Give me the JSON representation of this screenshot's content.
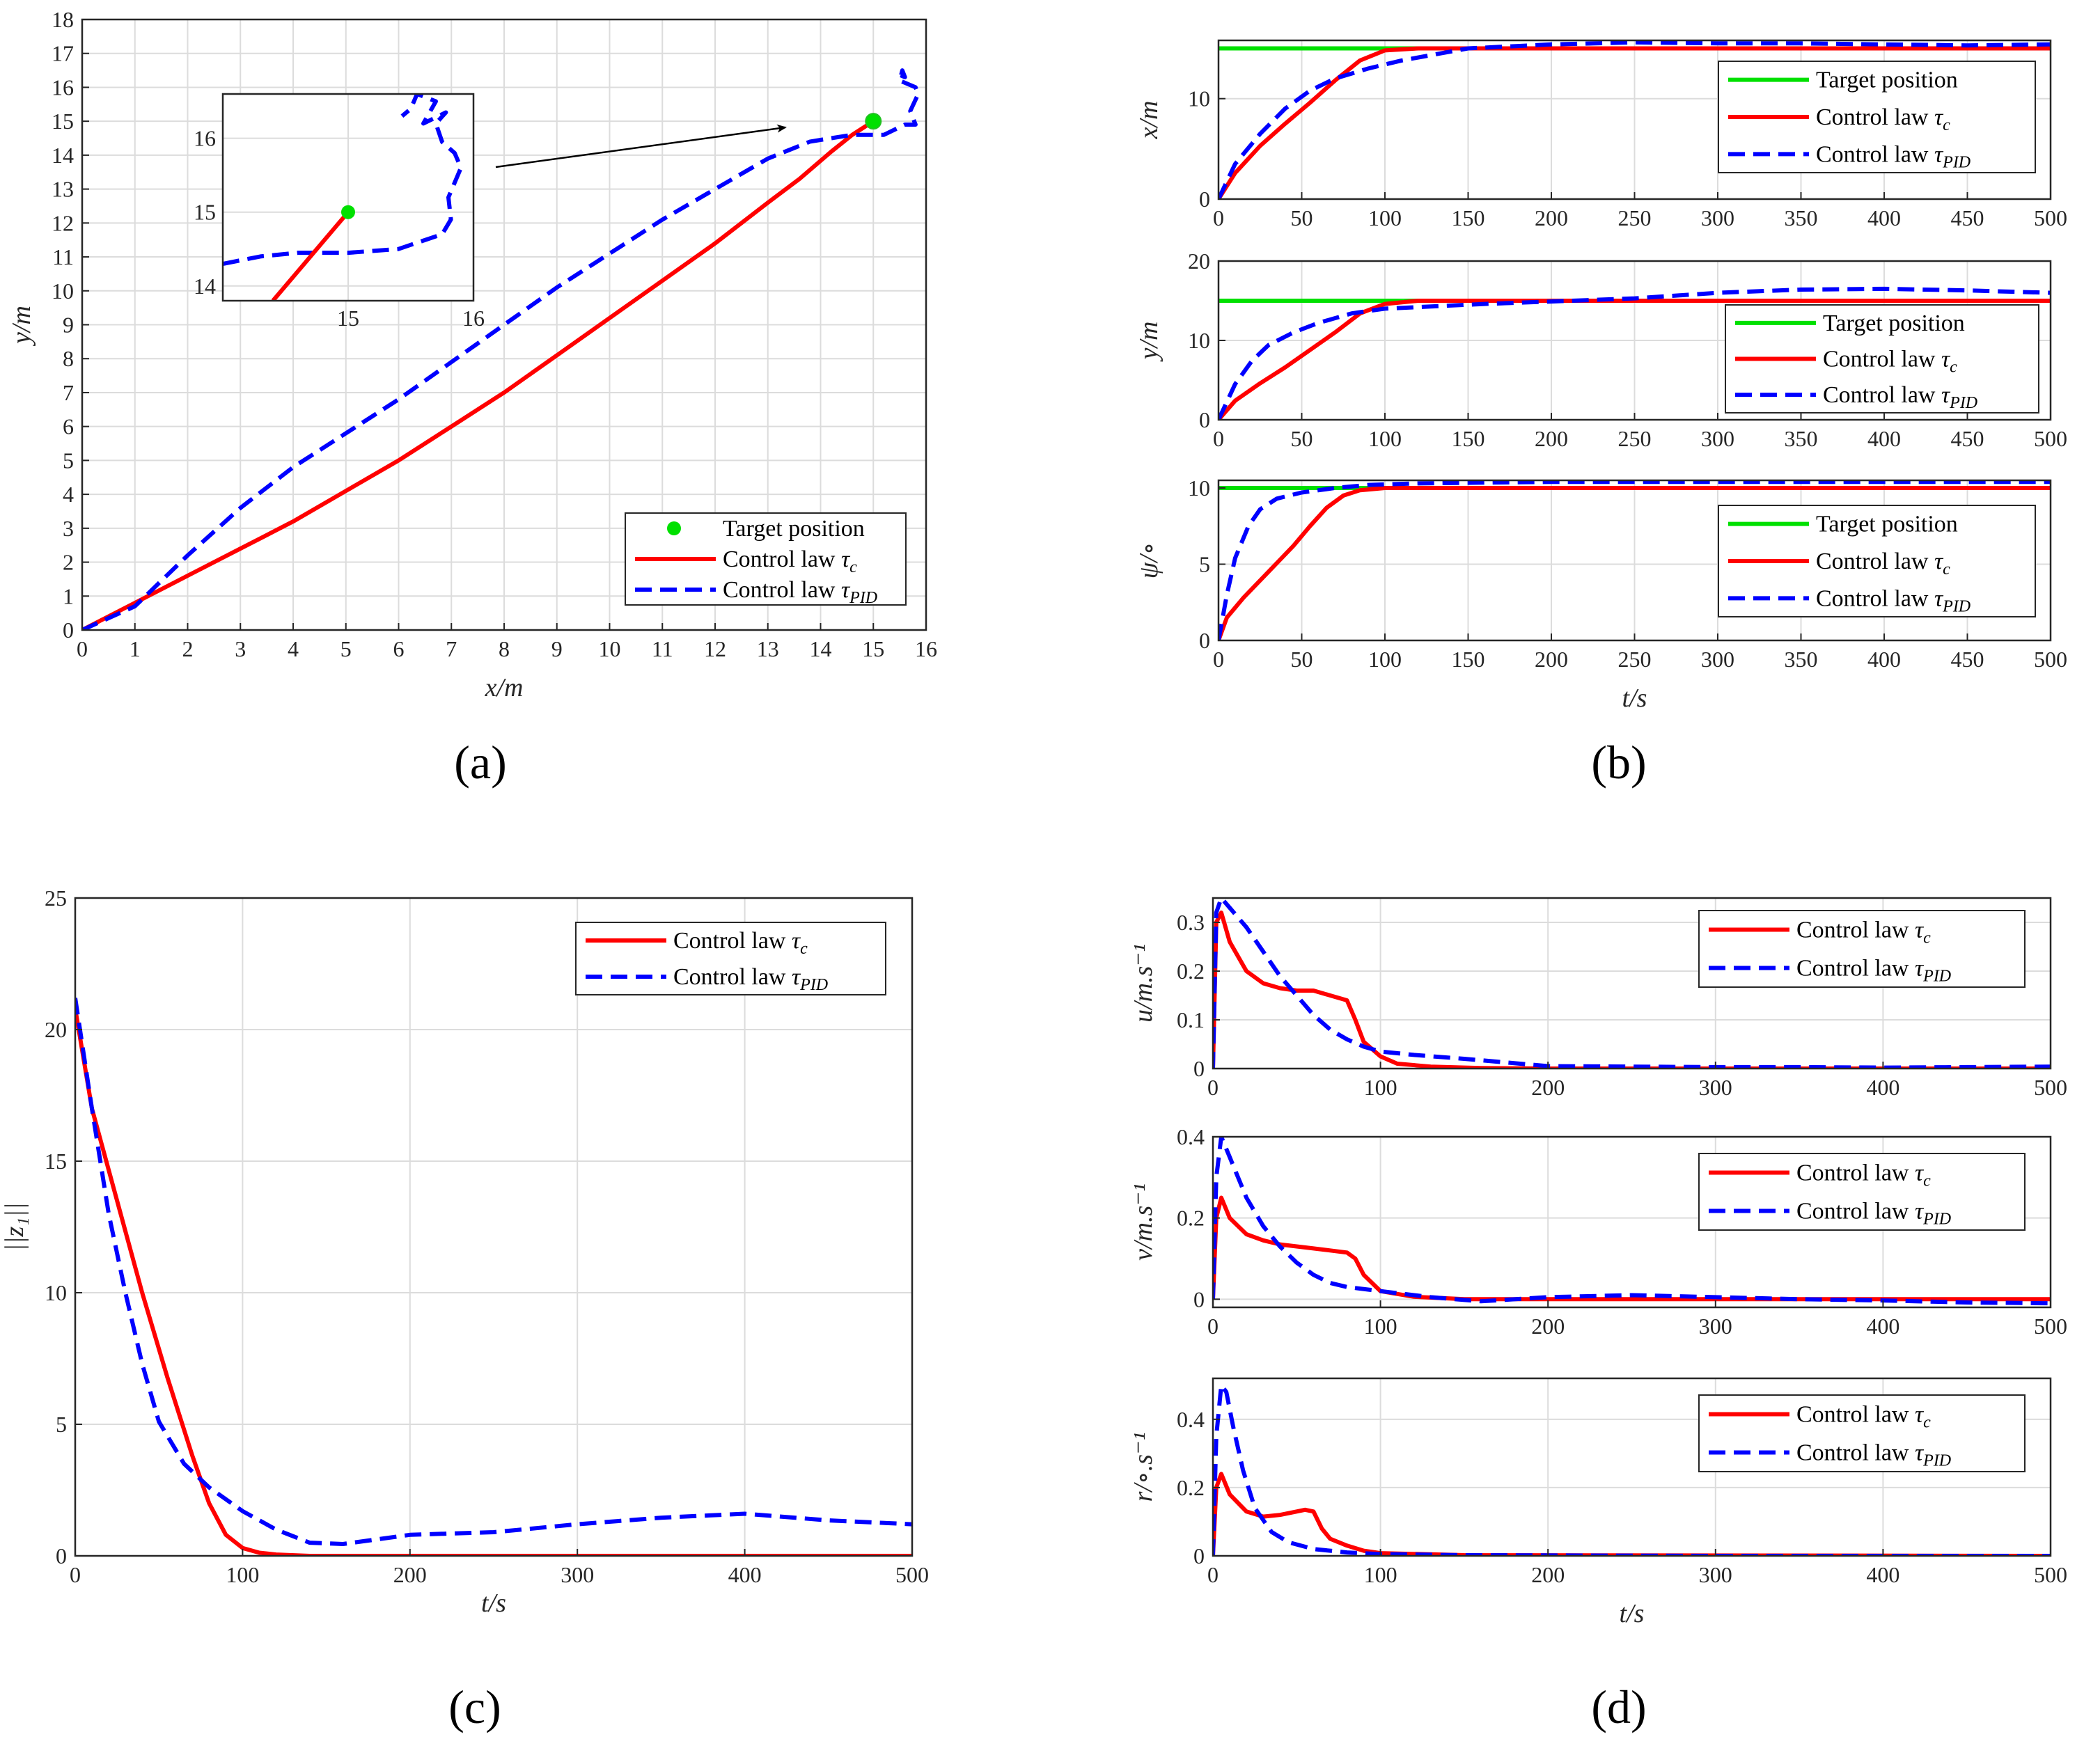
{
  "colors": {
    "target": "#00e000",
    "ctrl": "#ff0000",
    "pid": "#0000ff",
    "axis": "#262626",
    "grid": "#dcdcdc"
  },
  "chart_data": [
    {
      "id": "a",
      "type": "line",
      "panel_label": "(a)",
      "xlabel": "x/m",
      "ylabel": "y/m",
      "xlim": [
        0,
        16
      ],
      "ylim": [
        0,
        18
      ],
      "xticks": [
        0,
        1,
        2,
        3,
        4,
        5,
        6,
        7,
        8,
        9,
        10,
        11,
        12,
        13,
        14,
        15,
        16
      ],
      "yticks": [
        0,
        1,
        2,
        3,
        4,
        5,
        6,
        7,
        8,
        9,
        10,
        11,
        12,
        13,
        14,
        15,
        16,
        17,
        18
      ],
      "legend": [
        "Target position",
        "Control law τc",
        "Control law τPID"
      ],
      "legend_position": "bottom-right",
      "target": [
        15,
        15
      ],
      "series": [
        {
          "name": "Control law τc",
          "style": "ctrl",
          "x": [
            0,
            1,
            2,
            3,
            4,
            5,
            6,
            7,
            8,
            9,
            10,
            11,
            12,
            13,
            13.6,
            14.2,
            14.6,
            15
          ],
          "y": [
            0,
            0.8,
            1.6,
            2.4,
            3.2,
            4.1,
            5,
            6,
            7,
            8.1,
            9.2,
            10.3,
            11.4,
            12.6,
            13.3,
            14.1,
            14.6,
            15
          ]
        },
        {
          "name": "Control law τPID",
          "style": "pid",
          "x": [
            0,
            1,
            2,
            3,
            4,
            5,
            6,
            7,
            8,
            9,
            10,
            11,
            12,
            13,
            13.8,
            14.6,
            15.2,
            15.6,
            15.8,
            15.7,
            15.85,
            15.8,
            15.5,
            15.55,
            15.6,
            15.45
          ],
          "y": [
            0,
            0.7,
            2.2,
            3.6,
            4.8,
            5.8,
            6.8,
            7.9,
            9,
            10.1,
            11.1,
            12.1,
            13,
            13.9,
            14.4,
            14.6,
            14.6,
            14.9,
            14.9,
            15.3,
            15.8,
            16,
            16.2,
            16.5,
            16.3,
            16.4
          ]
        }
      ],
      "inset": {
        "xlim": [
          14,
          16
        ],
        "ylim": [
          13.8,
          16.6
        ],
        "xticks": [
          15,
          16
        ],
        "yticks": [
          14,
          15,
          16
        ],
        "ctrl": {
          "x": [
            14.4,
            14.6,
            14.8,
            15
          ],
          "y": [
            13.8,
            14.2,
            14.6,
            15
          ]
        },
        "pid": {
          "x": [
            14,
            14.3,
            14.6,
            15.0,
            15.4,
            15.75,
            15.82,
            15.8,
            15.85,
            15.9,
            15.85,
            15.75,
            15.7,
            15.78,
            15.6,
            15.7,
            15.55,
            15.5,
            15.43
          ],
          "y": [
            14.3,
            14.4,
            14.45,
            14.45,
            14.5,
            14.7,
            14.9,
            15.2,
            15.4,
            15.6,
            15.8,
            15.95,
            16.2,
            16.35,
            16.2,
            16.5,
            16.6,
            16.4,
            16.3
          ]
        }
      }
    },
    {
      "id": "b1",
      "type": "line",
      "panel_label": "(b)",
      "xlabel": "",
      "ylabel": "x/m",
      "xlim": [
        0,
        500
      ],
      "ylim": [
        0,
        15.8
      ],
      "xticks": [
        0,
        50,
        100,
        150,
        200,
        250,
        300,
        350,
        400,
        450,
        500
      ],
      "yticks": [
        0,
        10
      ],
      "legend": [
        "Target position",
        "Control law τc",
        "Control law τPID"
      ],
      "legend_position": "top-right",
      "series": [
        {
          "name": "Target position",
          "style": "target",
          "x": [
            0,
            500
          ],
          "y": [
            15,
            15
          ]
        },
        {
          "name": "Control law τc",
          "style": "ctrl",
          "x": [
            0,
            10,
            25,
            40,
            55,
            70,
            85,
            100,
            120,
            150,
            200,
            300,
            500
          ],
          "y": [
            0,
            2.6,
            5.3,
            7.5,
            9.6,
            11.8,
            13.8,
            14.8,
            15,
            15,
            15,
            15,
            15
          ]
        },
        {
          "name": "Control law τPID",
          "style": "pid",
          "x": [
            0,
            10,
            25,
            40,
            55,
            70,
            90,
            110,
            130,
            150,
            200,
            250,
            300,
            350,
            400,
            450,
            500
          ],
          "y": [
            0,
            3.5,
            6.5,
            9,
            10.8,
            12,
            13,
            13.8,
            14.4,
            15,
            15.4,
            15.6,
            15.5,
            15.5,
            15.4,
            15.3,
            15.4
          ]
        }
      ]
    },
    {
      "id": "b2",
      "type": "line",
      "xlabel": "",
      "ylabel": "y/m",
      "xlim": [
        0,
        500
      ],
      "ylim": [
        0,
        20
      ],
      "xticks": [
        0,
        50,
        100,
        150,
        200,
        250,
        300,
        350,
        400,
        450,
        500
      ],
      "yticks": [
        0,
        10,
        20
      ],
      "legend": [
        "Target position",
        "Control law τc",
        "Control law τPID"
      ],
      "legend_position": "right",
      "series": [
        {
          "name": "Target position",
          "style": "target",
          "x": [
            0,
            500
          ],
          "y": [
            15,
            15
          ]
        },
        {
          "name": "Control law τc",
          "style": "ctrl",
          "x": [
            0,
            10,
            25,
            40,
            55,
            70,
            85,
            100,
            120,
            150,
            300,
            500
          ],
          "y": [
            0,
            2.4,
            4.6,
            6.6,
            8.8,
            11,
            13.4,
            14.6,
            15,
            15,
            15,
            15
          ]
        },
        {
          "name": "Control law τPID",
          "style": "pid",
          "x": [
            0,
            10,
            20,
            30,
            45,
            60,
            80,
            100,
            130,
            160,
            200,
            250,
            300,
            350,
            400,
            450,
            500
          ],
          "y": [
            0,
            4.5,
            7.4,
            9.4,
            11,
            12.2,
            13.4,
            14,
            14.3,
            14.6,
            14.9,
            15.3,
            16,
            16.4,
            16.5,
            16.3,
            16
          ]
        }
      ]
    },
    {
      "id": "b3",
      "type": "line",
      "xlabel": "t/s",
      "ylabel": "ψ/∘",
      "xlim": [
        0,
        500
      ],
      "ylim": [
        0,
        10.5
      ],
      "xticks": [
        0,
        50,
        100,
        150,
        200,
        250,
        300,
        350,
        400,
        450,
        500
      ],
      "yticks": [
        0,
        5,
        10
      ],
      "legend": [
        "Target position",
        "Control law τc",
        "Control law τPID"
      ],
      "legend_position": "right",
      "series": [
        {
          "name": "Target position",
          "style": "target",
          "x": [
            0,
            500
          ],
          "y": [
            10,
            10
          ]
        },
        {
          "name": "Control law τc",
          "style": "ctrl",
          "x": [
            0,
            5,
            15,
            30,
            45,
            55,
            65,
            75,
            85,
            100,
            120,
            200,
            500
          ],
          "y": [
            0,
            1.5,
            2.8,
            4.5,
            6.2,
            7.5,
            8.7,
            9.5,
            9.85,
            10,
            10,
            10,
            10
          ]
        },
        {
          "name": "Control law τPID",
          "style": "pid",
          "x": [
            0,
            5,
            10,
            18,
            25,
            35,
            50,
            70,
            90,
            120,
            200,
            300,
            400,
            500
          ],
          "y": [
            0,
            3,
            5.4,
            7.5,
            8.6,
            9.3,
            9.7,
            10,
            10.2,
            10.3,
            10.4,
            10.4,
            10.4,
            10.4
          ]
        }
      ]
    },
    {
      "id": "c",
      "type": "line",
      "panel_label": "(c)",
      "xlabel": "t/s",
      "ylabel": "||z₁||",
      "xlim": [
        0,
        500
      ],
      "ylim": [
        0,
        25
      ],
      "xticks": [
        0,
        100,
        200,
        300,
        400,
        500
      ],
      "yticks": [
        0,
        5,
        10,
        15,
        20,
        25
      ],
      "legend": [
        "Control law τc",
        "Control law τPID"
      ],
      "legend_position": "top-right",
      "series": [
        {
          "name": "Control law τc",
          "style": "ctrl",
          "x": [
            0,
            10,
            25,
            40,
            55,
            70,
            80,
            90,
            100,
            110,
            120,
            140,
            200,
            500
          ],
          "y": [
            20.8,
            17,
            13.5,
            10,
            6.8,
            3.8,
            2,
            0.8,
            0.3,
            0.12,
            0.05,
            0,
            0,
            0
          ]
        },
        {
          "name": "Control law τPID",
          "style": "pid",
          "x": [
            0,
            10,
            20,
            30,
            40,
            50,
            65,
            80,
            100,
            120,
            140,
            160,
            200,
            250,
            300,
            350,
            400,
            450,
            500
          ],
          "y": [
            21.2,
            17,
            13,
            10,
            7.3,
            5.1,
            3.5,
            2.6,
            1.7,
            1,
            0.5,
            0.45,
            0.8,
            0.9,
            1.2,
            1.45,
            1.6,
            1.35,
            1.2
          ]
        }
      ]
    },
    {
      "id": "d1",
      "type": "line",
      "panel_label": "(d)",
      "xlabel": "",
      "ylabel": "u/m.s⁻¹",
      "xlim": [
        0,
        500
      ],
      "ylim": [
        0,
        0.35
      ],
      "xticks": [
        0,
        100,
        200,
        300,
        400,
        500
      ],
      "yticks": [
        0,
        0.1,
        0.2,
        0.3
      ],
      "legend": [
        "Control law τc",
        "Control law τPID"
      ],
      "legend_position": "top-right",
      "series": [
        {
          "name": "Control law τc",
          "style": "ctrl",
          "x": [
            0,
            2,
            5,
            10,
            20,
            30,
            40,
            50,
            60,
            70,
            80,
            85,
            90,
            100,
            110,
            130,
            160,
            200,
            300,
            500
          ],
          "y": [
            0,
            0.3,
            0.32,
            0.26,
            0.2,
            0.175,
            0.165,
            0.16,
            0.16,
            0.15,
            0.14,
            0.1,
            0.055,
            0.025,
            0.01,
            0.004,
            0.001,
            0,
            0,
            0
          ]
        },
        {
          "name": "Control law τPID",
          "style": "pid",
          "x": [
            0,
            2,
            5,
            10,
            20,
            30,
            40,
            50,
            60,
            70,
            80,
            90,
            100,
            120,
            150,
            200,
            250,
            300,
            350,
            400,
            450,
            500
          ],
          "y": [
            0,
            0.32,
            0.35,
            0.33,
            0.29,
            0.24,
            0.19,
            0.15,
            0.11,
            0.08,
            0.06,
            0.045,
            0.035,
            0.028,
            0.02,
            0.005,
            0.004,
            0.003,
            0.003,
            0.002,
            0.003,
            0.004
          ]
        }
      ]
    },
    {
      "id": "d2",
      "type": "line",
      "xlabel": "",
      "ylabel": "v/m.s⁻¹",
      "xlim": [
        0,
        500
      ],
      "ylim": [
        -0.02,
        0.4
      ],
      "xticks": [
        0,
        100,
        200,
        300,
        400,
        500
      ],
      "yticks": [
        0,
        0.2,
        0.4
      ],
      "legend": [
        "Control law τc",
        "Control law τPID"
      ],
      "legend_position": "top-right",
      "series": [
        {
          "name": "Control law τc",
          "style": "ctrl",
          "x": [
            0,
            2,
            5,
            10,
            20,
            30,
            40,
            50,
            60,
            70,
            80,
            85,
            90,
            100,
            120,
            150,
            500
          ],
          "y": [
            0,
            0.2,
            0.25,
            0.2,
            0.16,
            0.145,
            0.135,
            0.13,
            0.125,
            0.12,
            0.115,
            0.1,
            0.06,
            0.02,
            0.006,
            0,
            0
          ]
        },
        {
          "name": "Control law τPID",
          "style": "pid",
          "x": [
            0,
            2,
            5,
            10,
            20,
            30,
            40,
            50,
            60,
            70,
            80,
            100,
            130,
            160,
            200,
            250,
            300,
            350,
            400,
            450,
            500
          ],
          "y": [
            0,
            0.3,
            0.4,
            0.35,
            0.25,
            0.18,
            0.13,
            0.09,
            0.06,
            0.04,
            0.03,
            0.02,
            0.005,
            -0.005,
            0.005,
            0.01,
            0.005,
            0,
            -0.003,
            -0.008,
            -0.01
          ]
        }
      ]
    },
    {
      "id": "d3",
      "type": "line",
      "xlabel": "t/s",
      "ylabel": "r/∘.s⁻¹",
      "xlim": [
        0,
        500
      ],
      "ylim": [
        0,
        0.52
      ],
      "xticks": [
        0,
        100,
        200,
        300,
        400,
        500
      ],
      "yticks": [
        0,
        0.2,
        0.4
      ],
      "legend": [
        "Control law τc",
        "Control law τPID"
      ],
      "legend_position": "top-right",
      "series": [
        {
          "name": "Control law τc",
          "style": "ctrl",
          "x": [
            0,
            2,
            5,
            10,
            20,
            30,
            40,
            50,
            55,
            60,
            65,
            70,
            80,
            90,
            100,
            150,
            500
          ],
          "y": [
            0,
            0.2,
            0.24,
            0.18,
            0.13,
            0.115,
            0.12,
            0.13,
            0.135,
            0.13,
            0.08,
            0.05,
            0.03,
            0.015,
            0.008,
            0.002,
            0
          ]
        },
        {
          "name": "Control law τPID",
          "style": "pid",
          "x": [
            0,
            2,
            5,
            8,
            12,
            18,
            25,
            35,
            45,
            60,
            80,
            100,
            150,
            300,
            500
          ],
          "y": [
            0,
            0.35,
            0.5,
            0.48,
            0.38,
            0.25,
            0.14,
            0.07,
            0.04,
            0.02,
            0.01,
            0.005,
            0.002,
            0,
            0
          ]
        }
      ]
    }
  ]
}
